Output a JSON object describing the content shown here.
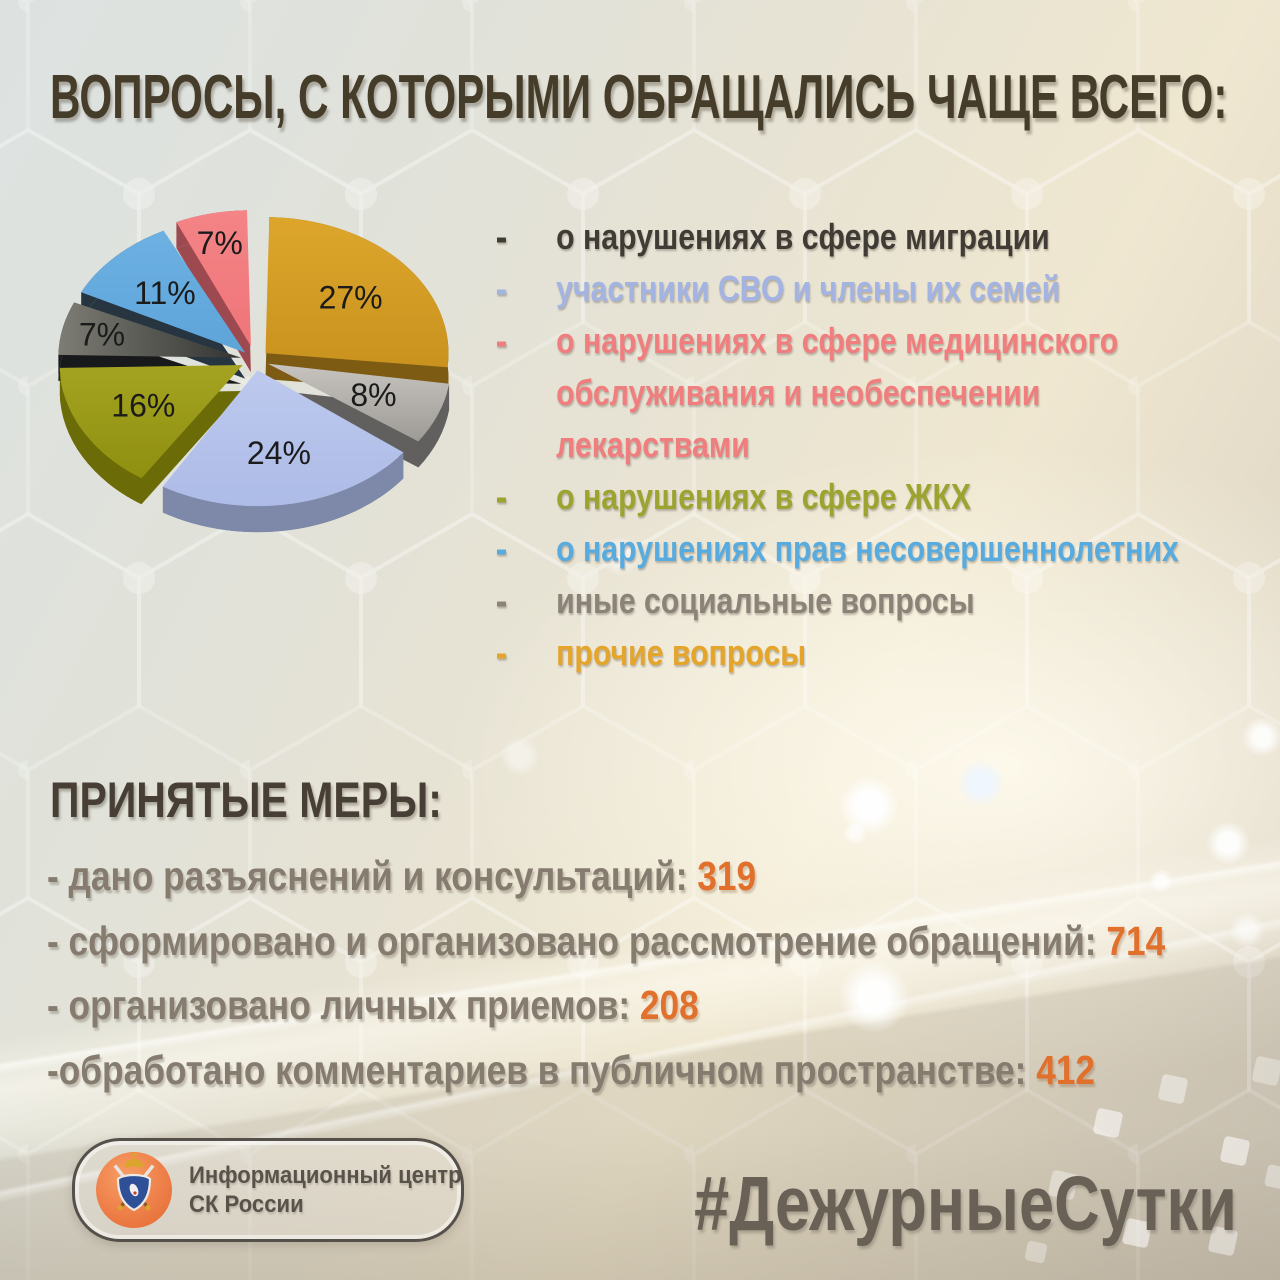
{
  "title": "ВОПРОСЫ, С КОТОРЫМИ ОБРАЩАЛИСЬ ЧАЩЕ ВСЕГО:",
  "chart_data": {
    "type": "pie",
    "style": "3d-exploded",
    "unit": "%",
    "start_angle_deg": 0,
    "direction": "clockwise",
    "slices": [
      {
        "label": "прочие вопросы",
        "value": 27,
        "color": "#dda62b",
        "color2": "#c9921e"
      },
      {
        "label": "иные социальные вопросы",
        "value": 8,
        "color": "#c7c4c0",
        "color2": "#9e9b97"
      },
      {
        "label": "участники СВО и члены их семей",
        "value": 24,
        "color": "#bdc9ee",
        "color2": "#adbbe7",
        "wall": "#7e88a8"
      },
      {
        "label": "о нарушениях в сфере ЖКХ",
        "value": 16,
        "color": "#a4a321",
        "color2": "#8f8f10",
        "wall": "#6b6b08"
      },
      {
        "label": "о нарушениях в сфере миграции",
        "value": 7,
        "color": "#7d7d75",
        "color2": "#333331",
        "wall": "#17191b",
        "gdir": "h"
      },
      {
        "label": "о нарушениях прав несовершеннолетних",
        "value": 11,
        "color": "#6db1e3",
        "color2": "#5ea4d9",
        "wall": "#263540"
      },
      {
        "label": "о нарушениях в сфере медицинского обслуживания и необеспечении лекарствами",
        "value": 7,
        "color": "#f48486",
        "color2": "#ef7579",
        "wall": "#9c4a50",
        "explode": 1.35
      }
    ]
  },
  "legend": {
    "dash": "-",
    "items": [
      {
        "text": "о нарушениях в сфере миграции",
        "color": "#403c35"
      },
      {
        "text": "участники СВО и члены их семей",
        "color": "#a3b3e2"
      },
      {
        "text": "о нарушениях в сфере медицинского\nобслуживания и необеспечении\nлекарствами",
        "color": "#f17e7e"
      },
      {
        "text": "о нарушениях в сфере ЖКХ",
        "color": "#9ca32f"
      },
      {
        "text": "о нарушениях прав несовершеннолетних",
        "color": "#58abdf"
      },
      {
        "text": "иные социальные вопросы",
        "color": "#8b8278"
      },
      {
        "text": "прочие вопросы",
        "color": "#e5a42a"
      }
    ]
  },
  "measures": {
    "heading": "ПРИНЯТЫЕ МЕРЫ:",
    "value_color": "#e0702c",
    "items": [
      {
        "label": "- дано разъяснений и консультаций:",
        "value": "319"
      },
      {
        "label": "- сформировано и организовано рассмотрение обращений:",
        "value": "714"
      },
      {
        "label": "- организовано личных приемов:",
        "value": "208"
      },
      {
        "label": "-обработано комментариев в публичном пространстве:",
        "value": "412"
      }
    ]
  },
  "footer": {
    "logo": {
      "line1": "Информационный центр",
      "line2": "СК России"
    },
    "hashtag": "#ДежурныеСутки"
  }
}
